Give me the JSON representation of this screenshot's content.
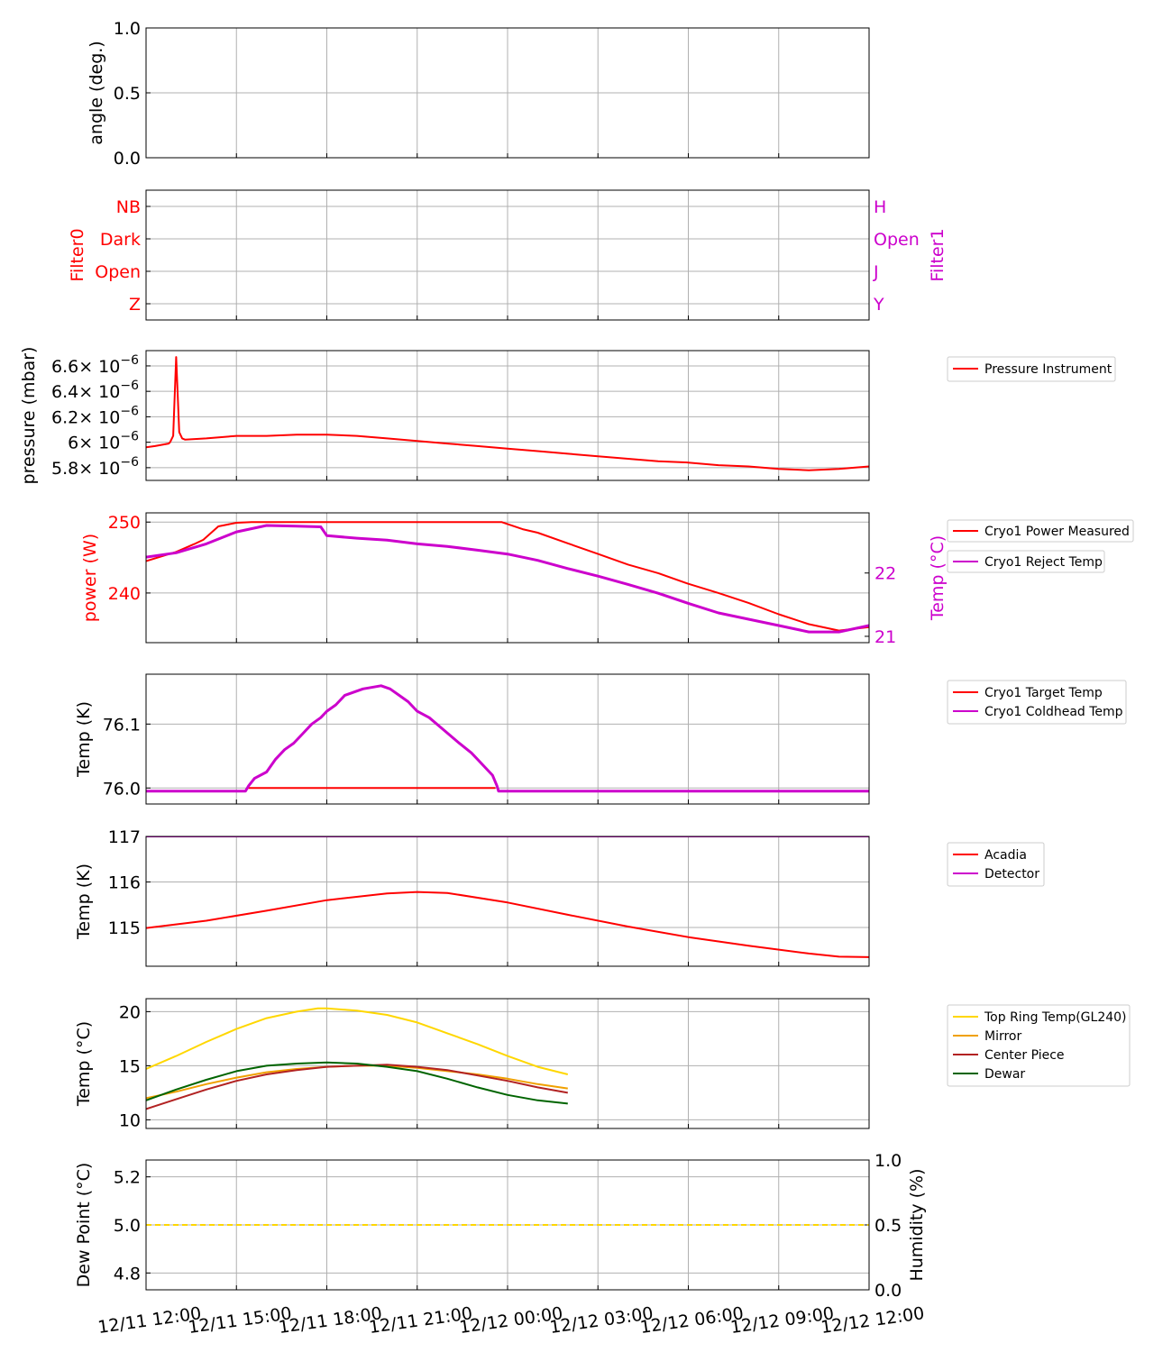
{
  "figure": {
    "x_ticks": [
      "12/11 12:00",
      "12/11 15:00",
      "12/11 18:00",
      "12/11 21:00",
      "12/12 00:00",
      "12/12 03:00",
      "12/12 06:00",
      "12/12 09:00",
      "12/12 12:00"
    ]
  },
  "chart_data": [
    {
      "id": "angle",
      "type": "line",
      "ylabel": "angle (deg.)",
      "ylim": [
        0,
        1
      ],
      "yticks": [
        "0.0",
        "0.5",
        "1.0"
      ],
      "series": []
    },
    {
      "id": "filters",
      "type": "line",
      "ylabel": "Filter0",
      "ylabel_color": "#ff0000",
      "categories_left": [
        "Z",
        "Open",
        "Dark",
        "NB"
      ],
      "ylabel_right": "Filter1",
      "ylabel_right_color": "#cc00cc",
      "categories_right": [
        "Y",
        "J",
        "Open",
        "H"
      ],
      "series": []
    },
    {
      "id": "pressure",
      "type": "line",
      "ylabel": "pressure (mbar)",
      "ylim": [
        5.7e-06,
        6.72e-06
      ],
      "ytick_values": [
        5.8e-06,
        6e-06,
        6.2e-06,
        6.4e-06,
        6.6e-06
      ],
      "yticks": [
        "5.8",
        "6",
        "6.2",
        "6.4",
        "6.6"
      ],
      "ytick_mult": "× 10",
      "ytick_exp": "−6",
      "series": [
        {
          "name": "Pressure Instrument",
          "color": "#ff0000",
          "x": [
            0,
            0.3,
            0.75,
            0.8,
            0.9,
            1.0,
            1.1,
            1.2,
            1.3,
            2,
            3,
            4,
            5,
            6,
            7,
            8,
            9,
            10,
            11,
            12,
            13,
            14,
            15,
            16,
            17,
            18,
            19,
            20,
            21,
            22,
            23,
            24
          ],
          "y": [
            5.96e-06,
            5.97e-06,
            5.99e-06,
            6e-06,
            6.05e-06,
            6.67e-06,
            6.08e-06,
            6.03e-06,
            6.02e-06,
            6.03e-06,
            6.05e-06,
            6.05e-06,
            6.06e-06,
            6.06e-06,
            6.05e-06,
            6.03e-06,
            6.01e-06,
            5.99e-06,
            5.97e-06,
            5.95e-06,
            5.93e-06,
            5.91e-06,
            5.89e-06,
            5.87e-06,
            5.85e-06,
            5.84e-06,
            5.82e-06,
            5.81e-06,
            5.79e-06,
            5.78e-06,
            5.79e-06,
            5.81e-06
          ]
        }
      ],
      "legend": [
        "Pressure Instrument"
      ]
    },
    {
      "id": "cryo_power",
      "type": "line",
      "ylabel": "power (W)",
      "ylabel_color": "#ff0000",
      "ylim": [
        233,
        251.3
      ],
      "yticks_values": [
        240,
        250
      ],
      "yticks": [
        "240",
        "250"
      ],
      "ylabel_right": "Temp (°C)",
      "ylabel_right_color": "#cc00cc",
      "ylim_right": [
        20.9,
        22.95
      ],
      "yticks_right_values": [
        21,
        22
      ],
      "yticks_right": [
        "21",
        "22"
      ],
      "series": [
        {
          "name": "Cryo1 Power Measured",
          "color": "#ff0000",
          "axis": "left",
          "x": [
            0,
            1,
            1.6,
            1.9,
            2.4,
            3,
            3.5,
            5,
            8,
            11,
            11.8,
            12.5,
            13,
            14,
            15,
            16,
            17,
            18,
            19,
            20,
            21,
            22,
            23,
            24
          ],
          "y": [
            244.5,
            245.8,
            246.9,
            247.5,
            249.4,
            249.9,
            250.0,
            250.0,
            250.0,
            250.0,
            250.0,
            249,
            248.5,
            247,
            245.5,
            244,
            242.8,
            241.3,
            240,
            238.6,
            237,
            235.6,
            234.7,
            235.2
          ]
        },
        {
          "name": "Cryo1 Reject Temp",
          "color": "#cc00cc",
          "axis": "right",
          "x": [
            0,
            1,
            2,
            3,
            4,
            5,
            5.8,
            6,
            7,
            8,
            9,
            10,
            11,
            12,
            13,
            14,
            15,
            16,
            17,
            18,
            19,
            20,
            21,
            22,
            23,
            24
          ],
          "y": [
            22.25,
            22.32,
            22.46,
            22.65,
            22.75,
            22.74,
            22.73,
            22.59,
            22.55,
            22.52,
            22.46,
            22.42,
            22.36,
            22.3,
            22.2,
            22.07,
            21.95,
            21.82,
            21.68,
            21.52,
            21.37,
            21.27,
            21.17,
            21.07,
            21.07,
            21.17
          ]
        }
      ],
      "legend": [
        "Cryo1 Power Measured",
        "Cryo1 Reject Temp"
      ]
    },
    {
      "id": "cryo_temp",
      "type": "line",
      "ylabel": "Temp (K)",
      "ylim": [
        75.975,
        76.178
      ],
      "yticks_values": [
        76.0,
        76.1
      ],
      "yticks": [
        "76.0",
        "76.1"
      ],
      "series": [
        {
          "name": "Cryo1 Target Temp",
          "color": "#ff0000",
          "x": [
            3.4,
            11.6
          ],
          "y": [
            76.0,
            76.0
          ]
        },
        {
          "name": "Cryo1 Coldhead Temp",
          "color": "#cc00cc",
          "x": [
            0,
            3.3,
            3.4,
            3.6,
            4.0,
            4.3,
            4.6,
            4.9,
            5.2,
            5.5,
            5.8,
            6.0,
            6.3,
            6.6,
            7.2,
            7.8,
            8.1,
            8.4,
            8.7,
            9.0,
            9.4,
            9.9,
            10.4,
            10.8,
            11.1,
            11.5,
            11.65,
            11.7,
            24
          ],
          "y": [
            75.995,
            75.995,
            76.003,
            76.015,
            76.025,
            76.045,
            76.06,
            76.07,
            76.085,
            76.1,
            76.11,
            76.12,
            76.13,
            76.145,
            76.155,
            76.16,
            76.155,
            76.145,
            76.135,
            76.12,
            76.11,
            76.09,
            76.07,
            76.055,
            76.04,
            76.02,
            76.003,
            75.995,
            75.995
          ]
        }
      ],
      "legend": [
        "Cryo1 Target Temp",
        "Cryo1 Coldhead Temp"
      ]
    },
    {
      "id": "detector_temp",
      "type": "line",
      "ylabel": "Temp (K)",
      "ylim": [
        114.15,
        117
      ],
      "yticks_values": [
        115,
        116,
        117
      ],
      "yticks": [
        "115",
        "116",
        "117"
      ],
      "series": [
        {
          "name": "Acadia",
          "color": "#ff0000",
          "x": [
            0,
            2,
            4,
            6,
            8,
            9,
            10,
            12,
            14,
            16,
            18,
            20,
            22,
            23,
            24
          ],
          "y": [
            114.99,
            115.15,
            115.37,
            115.6,
            115.75,
            115.78,
            115.76,
            115.55,
            115.28,
            115.02,
            114.79,
            114.6,
            114.43,
            114.36,
            114.35
          ]
        },
        {
          "name": "Detector",
          "color": "#cc00cc",
          "x": [
            0,
            24
          ],
          "y": [
            117,
            117
          ]
        }
      ],
      "legend": [
        "Acadia",
        "Detector"
      ]
    },
    {
      "id": "telescope_temp",
      "type": "line",
      "ylabel": "Temp (°C)",
      "ylim": [
        9.2,
        21.2
      ],
      "yticks_values": [
        10,
        15,
        20
      ],
      "yticks": [
        "10",
        "15",
        "20"
      ],
      "series": [
        {
          "name": "Top Ring Temp(GL240)",
          "color": "#ffd700",
          "x": [
            0,
            1,
            2,
            3,
            4,
            5,
            5.7,
            6,
            7,
            8,
            9,
            10,
            11,
            12,
            13,
            14
          ],
          "y": [
            14.7,
            15.9,
            17.2,
            18.4,
            19.4,
            20.0,
            20.3,
            20.3,
            20.1,
            19.7,
            19.0,
            18.0,
            17.0,
            15.9,
            14.9,
            14.2
          ]
        },
        {
          "name": "Mirror",
          "color": "#f0a000",
          "x": [
            0,
            1,
            2,
            3,
            4,
            5,
            6,
            7,
            8,
            9,
            10,
            11,
            12,
            13,
            14
          ],
          "y": [
            12.0,
            12.6,
            13.3,
            13.9,
            14.4,
            14.7,
            14.9,
            15.0,
            15.0,
            14.8,
            14.5,
            14.2,
            13.8,
            13.3,
            12.9
          ]
        },
        {
          "name": "Center Piece",
          "color": "#b22222",
          "x": [
            0,
            1,
            2,
            3,
            4,
            5,
            6,
            7,
            8,
            9,
            10,
            11,
            12,
            13,
            14
          ],
          "y": [
            11.0,
            11.9,
            12.8,
            13.6,
            14.2,
            14.6,
            14.9,
            15.0,
            15.1,
            14.9,
            14.6,
            14.1,
            13.6,
            13.0,
            12.5
          ]
        },
        {
          "name": "Dewar",
          "color": "#006400",
          "x": [
            0,
            1,
            2,
            3,
            4,
            5,
            6,
            7,
            8,
            9,
            10,
            11,
            12,
            13,
            14
          ],
          "y": [
            11.8,
            12.8,
            13.7,
            14.5,
            15.0,
            15.2,
            15.3,
            15.2,
            14.9,
            14.5,
            13.8,
            13.0,
            12.3,
            11.8,
            11.5
          ]
        }
      ],
      "legend": [
        "Top Ring Temp(GL240)",
        "Mirror",
        "Center Piece",
        "Dewar"
      ]
    },
    {
      "id": "dewpoint",
      "type": "line",
      "ylabel": "Dew Point (°C)",
      "ylim": [
        4.73,
        5.27
      ],
      "yticks_values": [
        4.8,
        5.0,
        5.2
      ],
      "yticks": [
        "4.8",
        "5.0",
        "5.2"
      ],
      "ylabel_right": "Humidity (%)",
      "ylim_right": [
        0,
        1
      ],
      "yticks_right_values": [
        0,
        0.5,
        1
      ],
      "yticks_right": [
        "0.0",
        "0.5",
        "1.0"
      ],
      "series": [
        {
          "name": "Dew Point",
          "color": "#ffd700",
          "dashed": true,
          "x": [
            0,
            24
          ],
          "y": [
            5.0,
            5.0
          ]
        }
      ],
      "legend": []
    }
  ]
}
